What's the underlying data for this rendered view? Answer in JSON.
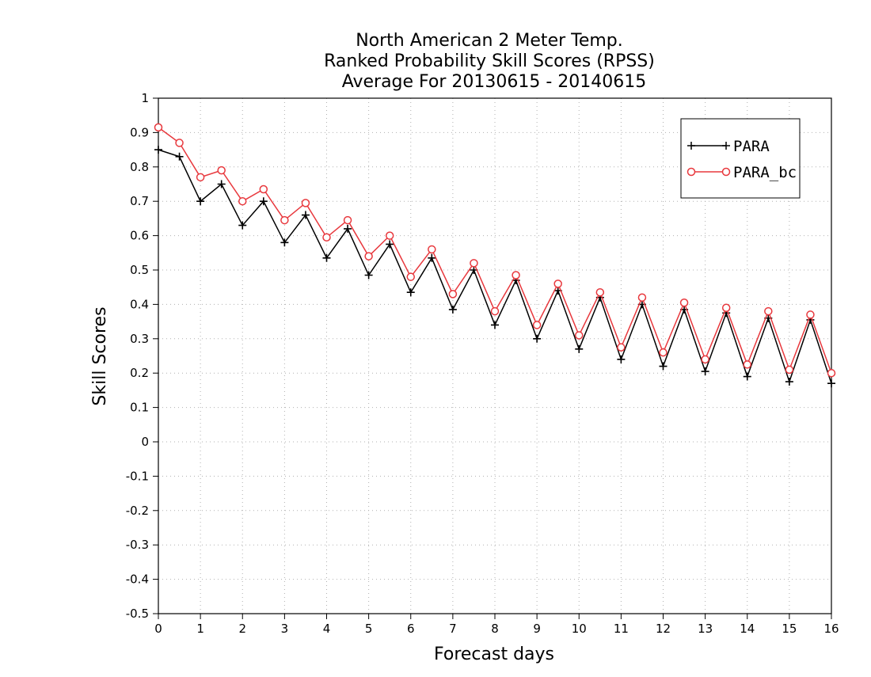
{
  "chart_data": {
    "type": "line",
    "title": [
      "North American 2 Meter Temp.",
      "Ranked Probability Skill Scores (RPSS)",
      "Average For 20130615 - 20140615"
    ],
    "xlabel": "Forecast days",
    "ylabel": "Skill Scores",
    "xlim": [
      0,
      16
    ],
    "ylim": [
      -0.5,
      1
    ],
    "x_ticks": [
      0,
      1,
      2,
      3,
      4,
      5,
      6,
      7,
      8,
      9,
      10,
      11,
      12,
      13,
      14,
      15,
      16
    ],
    "y_ticks": [
      -0.5,
      -0.4,
      -0.3,
      -0.2,
      -0.1,
      0,
      0.1,
      0.2,
      0.3,
      0.4,
      0.5,
      0.6,
      0.7,
      0.8,
      0.9,
      1
    ],
    "y_tick_labels": [
      "-0.5",
      "-0.4",
      "-0.3",
      "-0.2",
      "-0.1",
      "0",
      "0.1",
      "0.2",
      "0.3",
      "0.4",
      "0.5",
      "0.6",
      "0.7",
      "0.8",
      "0.9",
      "1"
    ],
    "grid": true,
    "legend_position": "top-right",
    "x": [
      0,
      0.5,
      1,
      1.5,
      2,
      2.5,
      3,
      3.5,
      4,
      4.5,
      5,
      5.5,
      6,
      6.5,
      7,
      7.5,
      8,
      8.5,
      9,
      9.5,
      10,
      10.5,
      11,
      11.5,
      12,
      12.5,
      13,
      13.5,
      14,
      14.5,
      15,
      15.5,
      16
    ],
    "series": [
      {
        "name": "PARA",
        "color": "#000000",
        "marker": "plus",
        "values": [
          0.85,
          0.83,
          0.7,
          0.75,
          0.63,
          0.7,
          0.58,
          0.66,
          0.535,
          0.62,
          0.485,
          0.575,
          0.435,
          0.535,
          0.385,
          0.5,
          0.34,
          0.47,
          0.3,
          0.44,
          0.27,
          0.42,
          0.24,
          0.4,
          0.22,
          0.385,
          0.205,
          0.375,
          0.19,
          0.36,
          0.175,
          0.355,
          0.17
        ]
      },
      {
        "name": "PARA_bc",
        "color": "#e8383d",
        "marker": "circle",
        "values": [
          0.915,
          0.87,
          0.77,
          0.79,
          0.7,
          0.735,
          0.645,
          0.695,
          0.595,
          0.645,
          0.54,
          0.6,
          0.48,
          0.56,
          0.43,
          0.52,
          0.38,
          0.485,
          0.34,
          0.46,
          0.31,
          0.435,
          0.275,
          0.42,
          0.26,
          0.405,
          0.24,
          0.39,
          0.225,
          0.38,
          0.21,
          0.37,
          0.2
        ]
      }
    ]
  }
}
